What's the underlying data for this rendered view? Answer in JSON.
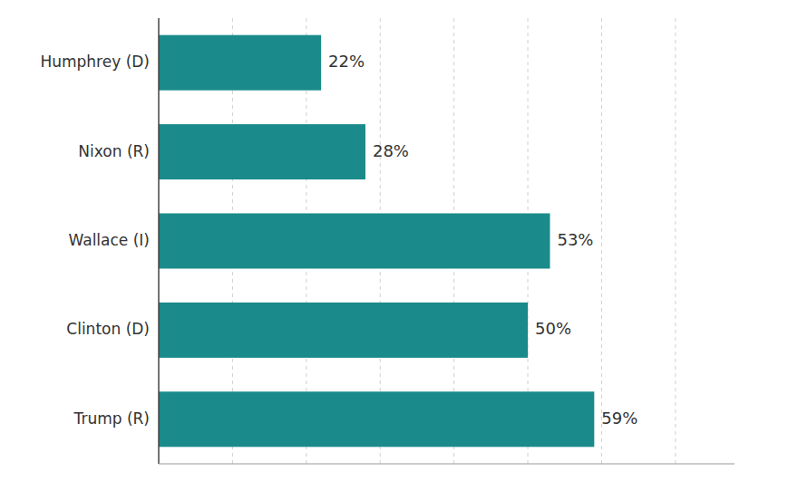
{
  "chart_data": {
    "type": "bar",
    "orientation": "horizontal",
    "categories": [
      "Humphrey (D)",
      "Nixon (R)",
      "Wallace (I)",
      "Clinton (D)",
      "Trump (R)"
    ],
    "values": [
      22,
      28,
      53,
      50,
      59
    ],
    "value_labels": [
      "22%",
      "28%",
      "53%",
      "50%",
      "59%"
    ],
    "color": "#1a8a8a",
    "xlim": [
      0,
      78
    ],
    "xticks": [
      10,
      20,
      30,
      40,
      50,
      60,
      70
    ],
    "grid": true,
    "data_labels": true,
    "tick_labels": "y"
  }
}
